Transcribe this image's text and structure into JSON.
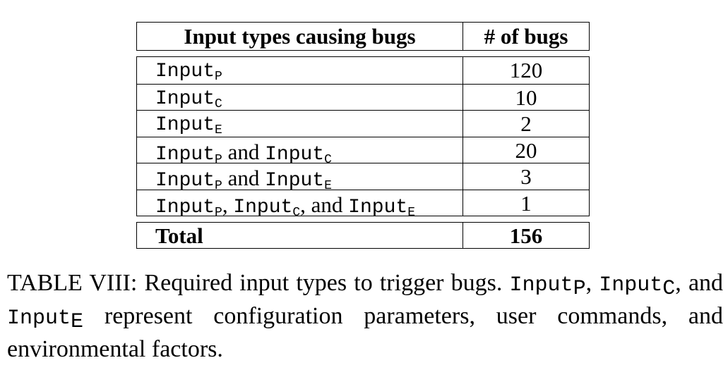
{
  "table": {
    "headers": {
      "input_types": "Input types causing bugs",
      "bug_count": "# of bugs"
    },
    "rows": [
      {
        "parts": [
          {
            "t": "Input",
            "m": true
          },
          {
            "t": "P",
            "sub": true
          }
        ],
        "count": "120"
      },
      {
        "parts": [
          {
            "t": "Input",
            "m": true
          },
          {
            "t": "C",
            "sub": true
          }
        ],
        "count": "10"
      },
      {
        "parts": [
          {
            "t": "Input",
            "m": true
          },
          {
            "t": "E",
            "sub": true
          }
        ],
        "count": "2"
      },
      {
        "parts": [
          {
            "t": "Input",
            "m": true
          },
          {
            "t": "P",
            "sub": true
          },
          {
            "t": " and ",
            "m": false
          },
          {
            "t": "Input",
            "m": true
          },
          {
            "t": "C",
            "sub": true
          }
        ],
        "count": "20"
      },
      {
        "parts": [
          {
            "t": "Input",
            "m": true
          },
          {
            "t": "P",
            "sub": true
          },
          {
            "t": " and ",
            "m": false
          },
          {
            "t": "Input",
            "m": true
          },
          {
            "t": "E",
            "sub": true
          }
        ],
        "count": "3"
      },
      {
        "parts": [
          {
            "t": "Input",
            "m": true
          },
          {
            "t": "P",
            "sub": true
          },
          {
            "t": ", ",
            "m": false
          },
          {
            "t": "Input",
            "m": true
          },
          {
            "t": "C",
            "sub": true
          },
          {
            "t": ", and ",
            "m": false
          },
          {
            "t": "Input",
            "m": true
          },
          {
            "t": "E",
            "sub": true
          }
        ],
        "count": "1"
      }
    ],
    "total": {
      "label": "Total",
      "count": "156"
    }
  },
  "caption": {
    "prefix": "TABLE VIII: Required input types to trigger bugs.",
    "mono_word": "Input",
    "sub_p": "P",
    "sub_c": "C",
    "sub_e": "E",
    "sep1": ",",
    "sep2": ", and",
    "suffix": "represent configuration parameters, user commands, and environmental factors."
  }
}
